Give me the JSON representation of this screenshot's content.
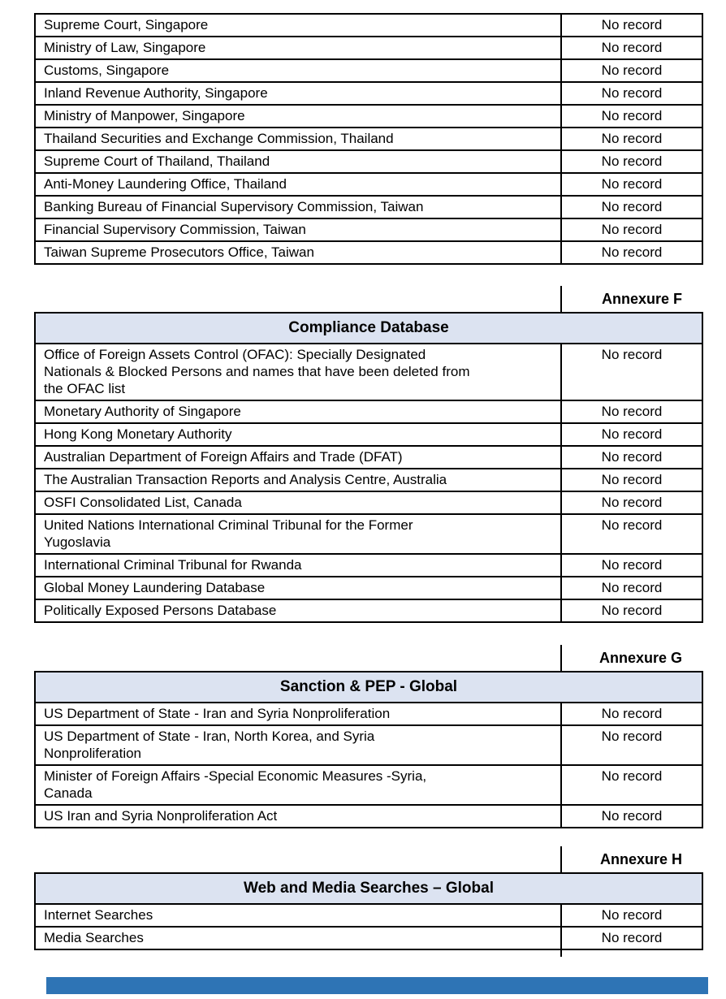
{
  "document": {
    "annexures": [
      {
        "label": "",
        "title": "",
        "rows": [
          {
            "source": "Supreme Court, Singapore",
            "result": "No record"
          },
          {
            "source": "Ministry of Law, Singapore",
            "result": "No record"
          },
          {
            "source": "Customs, Singapore",
            "result": "No record"
          },
          {
            "source": "Inland Revenue Authority, Singapore",
            "result": "No record"
          },
          {
            "source": "Ministry of Manpower, Singapore",
            "result": "No record"
          },
          {
            "source": "Thailand Securities and Exchange Commission, Thailand",
            "result": "No record"
          },
          {
            "source": "Supreme Court of Thailand, Thailand",
            "result": "No record"
          },
          {
            "source": "Anti-Money Laundering Office, Thailand",
            "result": "No record"
          },
          {
            "source": "Banking Bureau of Financial Supervisory Commission, Taiwan",
            "result": "No record"
          },
          {
            "source": "Financial Supervisory Commission, Taiwan",
            "result": "No record"
          },
          {
            "source": "Taiwan Supreme Prosecutors Office, Taiwan",
            "result": "No record"
          }
        ]
      },
      {
        "label": "Annexure F",
        "title": "Compliance Database",
        "rows": [
          {
            "source": "Office of Foreign Assets Control (OFAC): Specially Designated\nNationals & Blocked Persons and names that have been deleted from\nthe OFAC list",
            "result": "No record"
          },
          {
            "source": "Monetary Authority of Singapore",
            "result": "No record"
          },
          {
            "source": "Hong Kong Monetary Authority",
            "result": "No record"
          },
          {
            "source": "Australian Department of Foreign Affairs and Trade (DFAT)",
            "result": "No record"
          },
          {
            "source": "The Australian Transaction Reports and Analysis Centre, Australia",
            "result": "No record"
          },
          {
            "source": "OSFI Consolidated List, Canada",
            "result": "No record"
          },
          {
            "source": "United Nations International Criminal Tribunal for the Former\nYugoslavia",
            "result": "No record"
          },
          {
            "source": "International Criminal Tribunal for Rwanda",
            "result": "No record"
          },
          {
            "source": "Global Money Laundering Database",
            "result": "No record"
          },
          {
            "source": "Politically Exposed Persons Database",
            "result": "No record"
          }
        ]
      },
      {
        "label": "Annexure G",
        "title": "Sanction & PEP - Global",
        "rows": [
          {
            "source": "US Department of State - Iran and Syria Nonproliferation",
            "result": "No record"
          },
          {
            "source": "US Department of State - Iran, North Korea, and Syria\nNonproliferation",
            "result": "No record"
          },
          {
            "source": "Minister of Foreign Affairs -Special Economic Measures -Syria,\nCanada",
            "result": "No record"
          },
          {
            "source": "US Iran and Syria Nonproliferation Act",
            "result": "No record"
          }
        ]
      },
      {
        "label": "Annexure H",
        "title": "Web and Media Searches – Global",
        "rows": [
          {
            "source": "Internet Searches",
            "result": "No record"
          },
          {
            "source": "Media Searches",
            "result": "No record"
          }
        ]
      }
    ]
  },
  "styles": {
    "header_fill": "#dce3f1",
    "border_color": "#000000",
    "text_color": "#000000",
    "footer_bar_color": "#2e74b5"
  }
}
